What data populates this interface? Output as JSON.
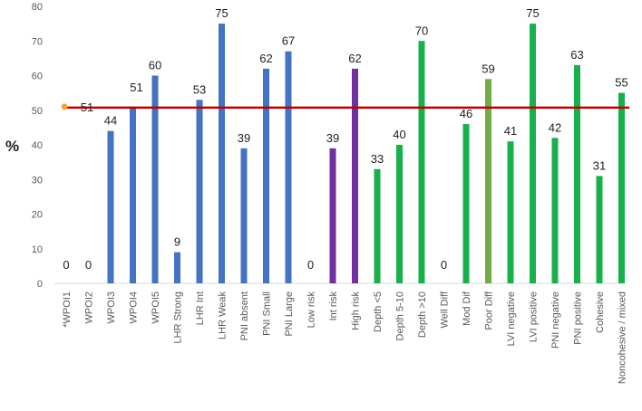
{
  "chart_data": {
    "type": "bar",
    "ylabel": "%",
    "ylim": [
      0,
      80
    ],
    "yticks": [
      0,
      10,
      20,
      30,
      40,
      50,
      60,
      70,
      80
    ],
    "grid": false,
    "categories": [
      "*WPOI1",
      "WPOI2",
      "WPOI3",
      "WPOI4",
      "WPOI5",
      "LHR Strong",
      "LHR Int",
      "LHR Weak",
      "PNI absent",
      "PNI Small",
      "PNI Large",
      "Low risk",
      "Int risk",
      "High risk",
      "Depth <5",
      "Depth 5-10",
      "Depth >10",
      "Well Diff",
      "Mod Dif",
      "Poor Diff",
      "LVI negative",
      "LVI positive",
      "PNI negative",
      "PNI positive",
      "Cohesive",
      "Noncohesive / mixed"
    ],
    "values": [
      0,
      0,
      44,
      51,
      60,
      9,
      53,
      75,
      39,
      62,
      67,
      0,
      39,
      62,
      33,
      40,
      70,
      0,
      46,
      59,
      41,
      75,
      42,
      63,
      31,
      55
    ],
    "value_labels": [
      "0",
      "0",
      "44",
      "51",
      "60",
      "9",
      "53",
      "75",
      "39",
      "62",
      "67",
      "0",
      "39",
      "62",
      "33",
      "40",
      "70",
      "0",
      "46",
      "59",
      "41",
      "75",
      "42",
      "63",
      "31",
      "55"
    ],
    "bar_colors": [
      "#4472C4",
      "#4472C4",
      "#4472C4",
      "#4472C4",
      "#4472C4",
      "#4472C4",
      "#4472C4",
      "#4472C4",
      "#4472C4",
      "#4472C4",
      "#4472C4",
      "#7030A0",
      "#7030A0",
      "#7030A0",
      "#18B04A",
      "#18B04A",
      "#18B04A",
      "#18B04A",
      "#18B04A",
      "#70AD47",
      "#18B04A",
      "#18B04A",
      "#18B04A",
      "#18B04A",
      "#18B04A",
      "#18B04A"
    ],
    "reference_line": {
      "value": 51,
      "label": "51",
      "color": "#C00000",
      "marker_color": "#F4A23A"
    }
  }
}
